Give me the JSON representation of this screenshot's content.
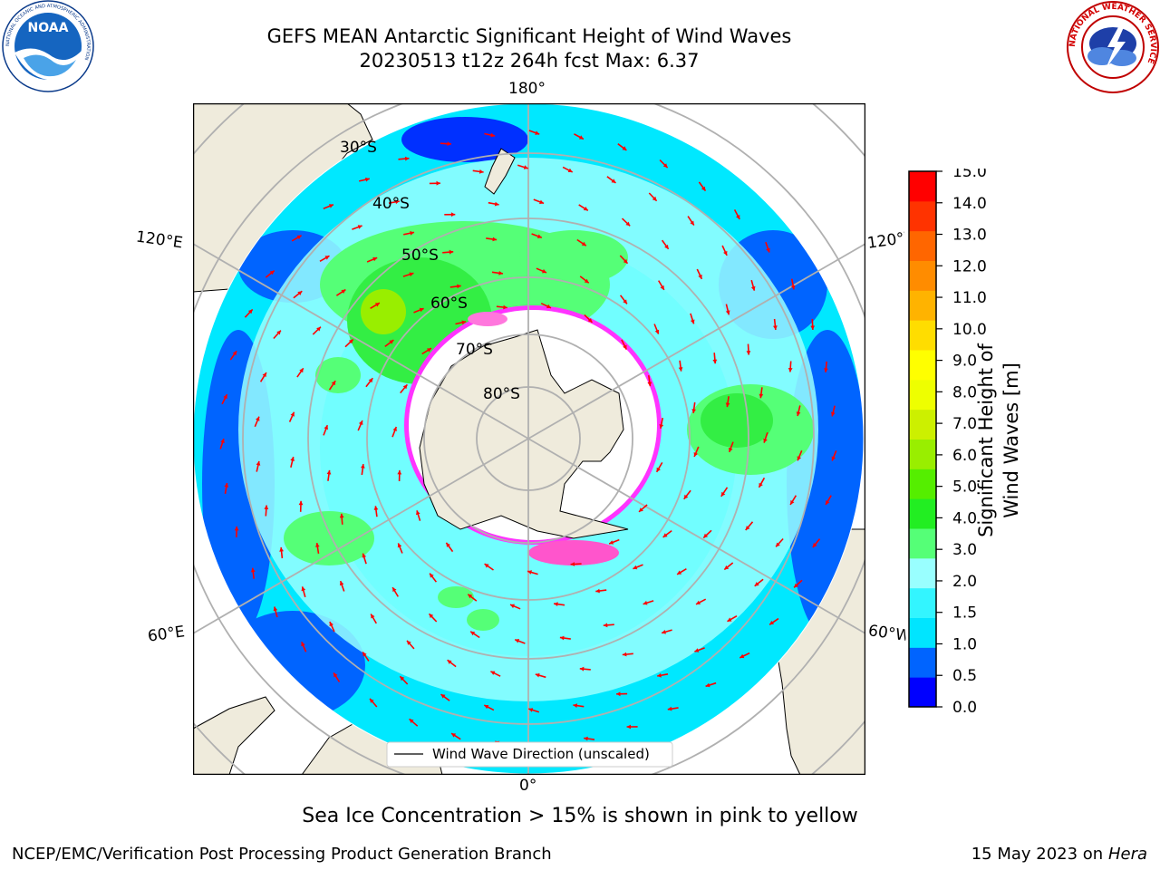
{
  "header": {
    "title_line1": "GEFS MEAN Antarctic Significant Height of Wind Waves",
    "title_line2": "20230513 t12z 264h fcst   Max: 6.37"
  },
  "logos": {
    "noaa": {
      "text": "NOAA",
      "ring_text": "NATIONAL OCEANIC AND ATMOSPHERIC ADMINISTRATION"
    },
    "nws": {
      "ring_text": "NATIONAL WEATHER SERVICE"
    }
  },
  "map": {
    "projection": "south-polar-stereographic",
    "longitude_labels": [
      "180°",
      "120°E",
      "120°W",
      "60°E",
      "60°W",
      "0°"
    ],
    "latitude_labels": [
      "30°S",
      "40°S",
      "50°S",
      "60°S",
      "70°S",
      "80°S"
    ],
    "legend_label": "Wind Wave Direction (unscaled)",
    "colors": {
      "land": "#efebdc",
      "ice_edge": "#ff33ff",
      "grid": "#b0b0b0",
      "arrow": "#ff0000"
    }
  },
  "colorbar": {
    "label": "Significant Height of Wind Waves [m]",
    "ticks": [
      "15.0",
      "14.0",
      "13.0",
      "12.0",
      "11.0",
      "10.0",
      "9.0",
      "8.0",
      "7.0",
      "6.0",
      "5.0",
      "4.0",
      "3.0",
      "2.0",
      "1.5",
      "1.0",
      "0.5",
      "0.0"
    ],
    "colors_bottom_to_top": [
      "#0000ff",
      "#0064ff",
      "#00e5ff",
      "#33f5ff",
      "#99ffff",
      "#55ff77",
      "#22ee22",
      "#55ee00",
      "#99ee00",
      "#ccf000",
      "#eeff00",
      "#ffff00",
      "#ffdd00",
      "#ffb300",
      "#ff8c00",
      "#ff6600",
      "#ff3300",
      "#ff0000"
    ]
  },
  "note": "Sea Ice Concentration > 15% is shown in pink to yellow",
  "footer": {
    "left": "NCEP/EMC/Verification Post Processing Product Generation Branch",
    "date": "15 May 2023 on",
    "machine": "Hera"
  }
}
